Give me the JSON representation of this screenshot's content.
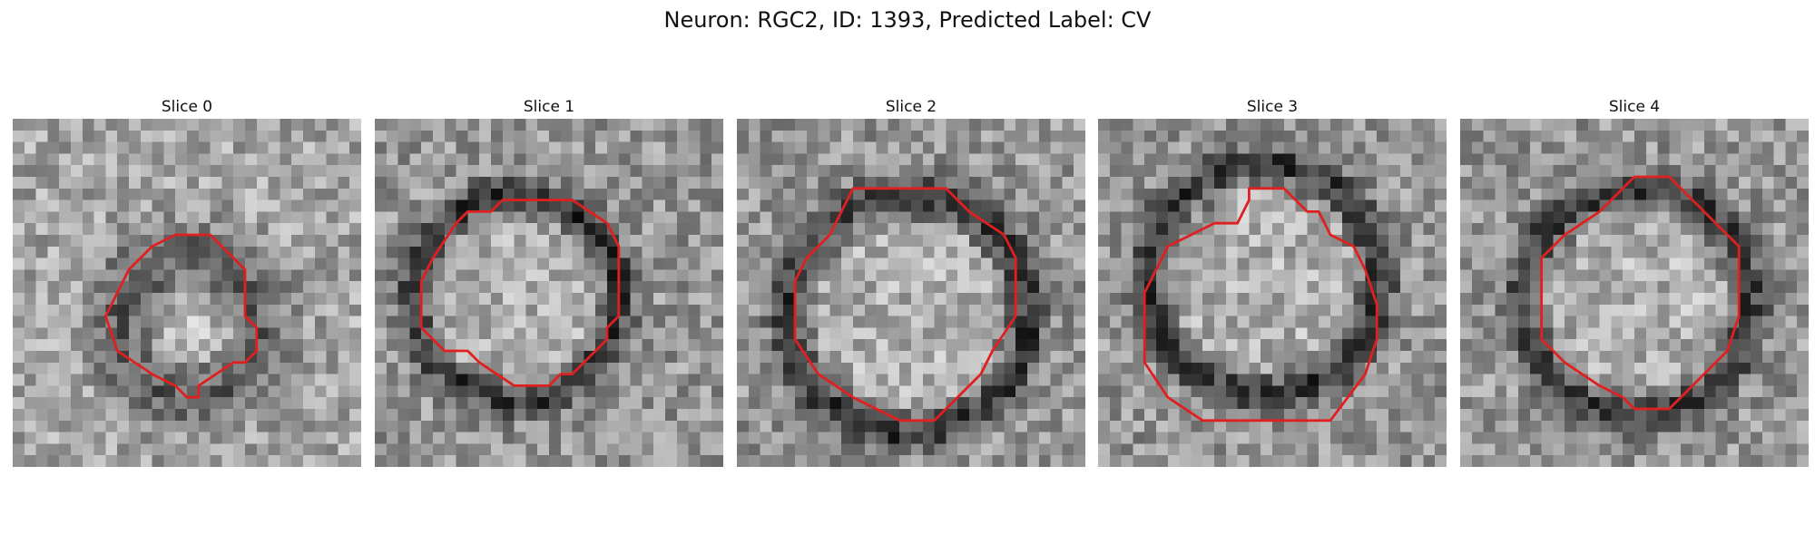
{
  "figure": {
    "title": "Neuron: RGC2, ID: 1393, Predicted Label: CV",
    "contour_color": "#e02020",
    "colormap": "gray",
    "grid_size": 30
  },
  "slices": [
    {
      "title": "Slice 0",
      "seed": 11,
      "style": "blob",
      "contour": [
        [
          14,
          10
        ],
        [
          17,
          10
        ],
        [
          20,
          13
        ],
        [
          20,
          17
        ],
        [
          21,
          18
        ],
        [
          21,
          20
        ],
        [
          20,
          21
        ],
        [
          19,
          21
        ],
        [
          16,
          23
        ],
        [
          16,
          24
        ],
        [
          15,
          24
        ],
        [
          14,
          23
        ],
        [
          12,
          22
        ],
        [
          9,
          20
        ],
        [
          8,
          17
        ],
        [
          9,
          15
        ],
        [
          10,
          13
        ],
        [
          12,
          11
        ]
      ]
    },
    {
      "title": "Slice 1",
      "seed": 23,
      "style": "ring",
      "contour": [
        [
          11,
          7
        ],
        [
          17,
          7
        ],
        [
          20,
          9
        ],
        [
          21,
          11
        ],
        [
          21,
          17
        ],
        [
          20,
          18
        ],
        [
          20,
          19
        ],
        [
          17,
          22
        ],
        [
          16,
          22
        ],
        [
          15,
          23
        ],
        [
          12,
          23
        ],
        [
          9,
          21
        ],
        [
          8,
          20
        ],
        [
          6,
          20
        ],
        [
          4,
          18
        ],
        [
          4,
          15
        ],
        [
          4,
          14
        ],
        [
          5,
          12
        ],
        [
          7,
          9
        ],
        [
          8,
          8
        ],
        [
          10,
          8
        ]
      ]
    },
    {
      "title": "Slice 2",
      "seed": 37,
      "style": "ring",
      "contour": [
        [
          10,
          6
        ],
        [
          18,
          6
        ],
        [
          20,
          8
        ],
        [
          23,
          10
        ],
        [
          24,
          12
        ],
        [
          24,
          17
        ],
        [
          22,
          20
        ],
        [
          21,
          22
        ],
        [
          19,
          24
        ],
        [
          17,
          26
        ],
        [
          14,
          26
        ],
        [
          12,
          25
        ],
        [
          10,
          24
        ],
        [
          7,
          22
        ],
        [
          5,
          19
        ],
        [
          5,
          14
        ],
        [
          6,
          12
        ],
        [
          8,
          10
        ]
      ]
    },
    {
      "title": "Slice 3",
      "seed": 53,
      "style": "ring",
      "contour": [
        [
          13,
          6
        ],
        [
          16,
          6
        ],
        [
          18,
          8
        ],
        [
          19,
          8
        ],
        [
          20,
          10
        ],
        [
          22,
          11
        ],
        [
          23,
          13
        ],
        [
          24,
          16
        ],
        [
          24,
          19
        ],
        [
          23,
          22
        ],
        [
          20,
          26
        ],
        [
          9,
          26
        ],
        [
          6,
          24
        ],
        [
          4,
          21
        ],
        [
          4,
          15
        ],
        [
          5,
          13
        ],
        [
          6,
          11
        ],
        [
          8,
          10
        ],
        [
          10,
          9
        ],
        [
          12,
          9
        ],
        [
          13,
          7
        ]
      ]
    },
    {
      "title": "Slice 4",
      "seed": 71,
      "style": "ring",
      "contour": [
        [
          15,
          5
        ],
        [
          18,
          5
        ],
        [
          21,
          8
        ],
        [
          24,
          11
        ],
        [
          24,
          17
        ],
        [
          23,
          20
        ],
        [
          21,
          22
        ],
        [
          19,
          24
        ],
        [
          18,
          25
        ],
        [
          15,
          25
        ],
        [
          14,
          24
        ],
        [
          12,
          23
        ],
        [
          9,
          21
        ],
        [
          7,
          19
        ],
        [
          7,
          14
        ],
        [
          7,
          12
        ],
        [
          9,
          10
        ],
        [
          12,
          8
        ],
        [
          13,
          7
        ]
      ]
    }
  ]
}
